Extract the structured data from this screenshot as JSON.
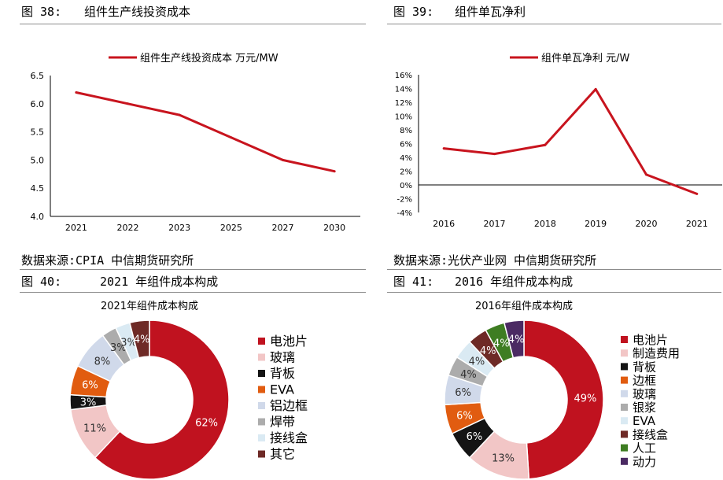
{
  "figures": [
    {
      "number": "图 38:",
      "title": "组件生产线投资成本",
      "source": "数据来源:CPIA 中信期货研究所",
      "chart_data": {
        "type": "line",
        "title": "",
        "xlabel": "",
        "ylabel": "",
        "categories": [
          "2021",
          "2022",
          "2023",
          "2025",
          "2027",
          "2030"
        ],
        "series": [
          {
            "name": "组件生产线投资成本  万元/MW",
            "values": [
              6.2,
              6.0,
              5.8,
              5.4,
              5.0,
              4.8
            ],
            "color": "#c8141e"
          }
        ],
        "ylim": [
          4.0,
          6.5
        ],
        "yticks": [
          "4.0",
          "4.5",
          "5.0",
          "5.5",
          "6.0",
          "6.5"
        ],
        "grid": false,
        "legend": "top-center"
      }
    },
    {
      "number": "图 39:",
      "title": "组件单瓦净利",
      "source": "数据来源:光伏产业网 中信期货研究所",
      "chart_data": {
        "type": "line",
        "title": "",
        "xlabel": "",
        "ylabel": "",
        "categories": [
          "2016",
          "2017",
          "2018",
          "2019",
          "2020",
          "2021"
        ],
        "series": [
          {
            "name": "组件单瓦净利 元/W",
            "values": [
              5.3,
              4.5,
              5.8,
              13.9,
              1.5,
              -1.3
            ],
            "unit": "%",
            "color": "#c8141e"
          }
        ],
        "ylim": [
          -4,
          16
        ],
        "yticks": [
          "-4%",
          "-2%",
          "0%",
          "2%",
          "4%",
          "6%",
          "8%",
          "10%",
          "12%",
          "14%",
          "16%"
        ],
        "grid": false,
        "legend": "top-center"
      }
    },
    {
      "number": "图 40:",
      "title": "2021 年组件成本构成",
      "source": "",
      "chart_data": {
        "type": "pie",
        "donut": true,
        "title": "2021年组件成本构成",
        "categories": [
          "电池片",
          "玻璃",
          "背板",
          "EVA",
          "铝边框",
          "焊带",
          "接线盒",
          "其它"
        ],
        "values": [
          62,
          11,
          3,
          6,
          8,
          3,
          3,
          4
        ],
        "labels": [
          "62%",
          "11%",
          "3%",
          "6%",
          "8%",
          "3%",
          "3%",
          "4%"
        ],
        "colors": [
          "#c0121f",
          "#f2c6c6",
          "#141414",
          "#e15c10",
          "#d0d9ea",
          "#acacac",
          "#daeaf3",
          "#6e2a26"
        ],
        "legend": "right"
      }
    },
    {
      "number": "图 41:",
      "title": "2016 年组件成本构成",
      "source": "",
      "chart_data": {
        "type": "pie",
        "donut": true,
        "title": "2016年组件成本构成",
        "categories": [
          "电池片",
          "制造费用",
          "背板",
          "边框",
          "玻璃",
          "银浆",
          "EVA",
          "接线盒",
          "人工",
          "动力"
        ],
        "values": [
          49,
          13,
          6,
          6,
          6,
          4,
          4,
          4,
          4,
          4
        ],
        "labels": [
          "49%",
          "13%",
          "6%",
          "6%",
          "6%",
          "4%",
          "4%",
          "4%",
          "4%",
          "4%"
        ],
        "colors": [
          "#c0121f",
          "#f2c6c6",
          "#141414",
          "#e15c10",
          "#d0d9ea",
          "#acacac",
          "#daeaf3",
          "#6e2a26",
          "#3e7d22",
          "#4b2a63"
        ],
        "legend": "right"
      }
    }
  ]
}
